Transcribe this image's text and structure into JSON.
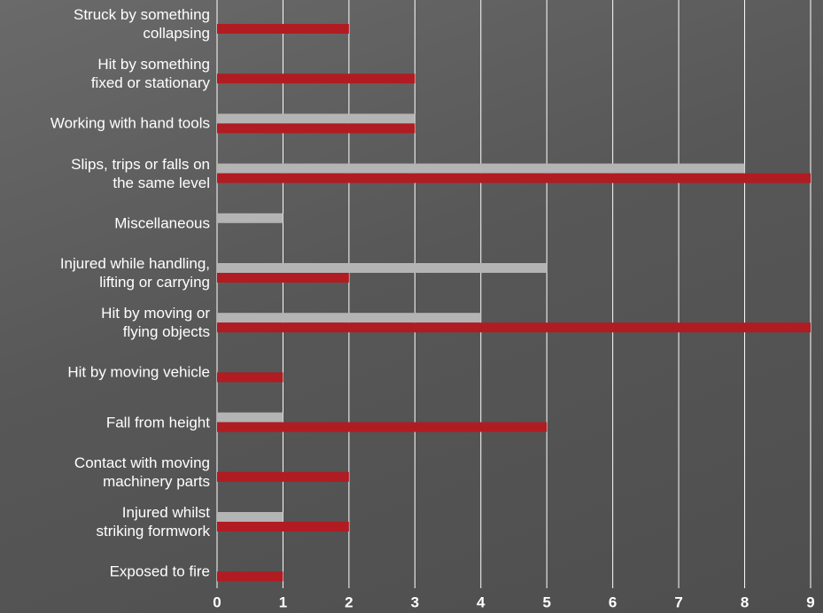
{
  "chart_data": {
    "type": "hbar",
    "categories": [
      "Struck by something\ncollapsing",
      "Hit by something\nfixed or stationary",
      "Working with hand tools",
      "Slips, trips or falls on\nthe same level",
      "Miscellaneous",
      "Injured while handling,\nlifting or carrying",
      "Hit by moving or\nflying objects",
      "Hit by moving vehicle",
      "Fall from height",
      "Contact with moving\nmachinery parts",
      "Injured whilst\nstriking formwork",
      "Exposed to fire"
    ],
    "series": [
      {
        "color": "#b4b4b4",
        "values": [
          0,
          0,
          3,
          8,
          1,
          5,
          4,
          0,
          1,
          0,
          1,
          0
        ]
      },
      {
        "color": "#b01c22",
        "values": [
          2,
          3,
          3,
          9,
          0,
          2,
          9,
          1,
          5,
          2,
          2,
          1
        ]
      }
    ],
    "xlim": [
      0,
      9
    ],
    "xticks": [
      0,
      1,
      2,
      3,
      4,
      5,
      6,
      7,
      8,
      9
    ],
    "grid": true
  }
}
